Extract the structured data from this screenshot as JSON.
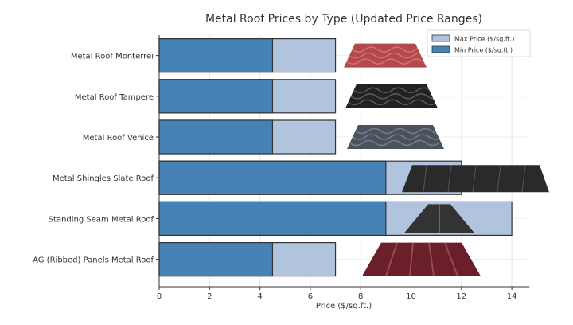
{
  "chart_data": {
    "type": "bar",
    "orientation": "horizontal",
    "stacked_overlay": true,
    "title": "Metal Roof Prices by Type (Updated Price Ranges)",
    "xlabel": "Price ($/sq.ft.)",
    "ylabel": "",
    "xlim": [
      0,
      14.7
    ],
    "xticks": [
      0,
      2,
      4,
      6,
      8,
      10,
      12,
      14
    ],
    "grid": true,
    "legend_placement": "top-right",
    "categories": [
      "Metal Roof Monterrei",
      "Metal Roof Tampere",
      "Metal Roof Venice",
      "Metal Shingles Slate Roof",
      "Standing Seam Metal Roof",
      "AG (Ribbed) Panels Metal Roof"
    ],
    "series": [
      {
        "name": "Max Price ($/sq.ft.)",
        "color": "#b0c4de",
        "values": [
          7,
          7,
          7,
          12,
          14,
          7
        ]
      },
      {
        "name": "Min Price ($/sq.ft.)",
        "color": "#4682b4",
        "values": [
          4.5,
          4.5,
          4.5,
          9,
          9,
          4.5
        ]
      }
    ],
    "roof_images": [
      {
        "icon": "red-tile-roof-icon",
        "color": "#b5484a"
      },
      {
        "icon": "black-tile-roof-icon",
        "color": "#222222"
      },
      {
        "icon": "gray-tile-roof-icon",
        "color": "#4a5260"
      },
      {
        "icon": "slate-shingle-roof-icon",
        "color": "#2a2a2a"
      },
      {
        "icon": "standing-seam-roof-icon",
        "color": "#333333"
      },
      {
        "icon": "ribbed-panel-roof-icon",
        "color": "#6a1f2a"
      }
    ]
  }
}
